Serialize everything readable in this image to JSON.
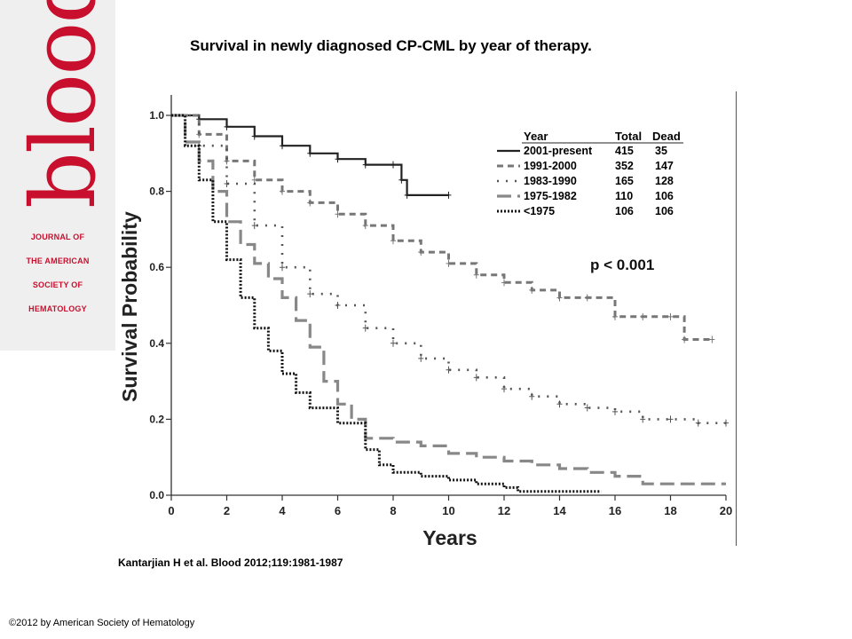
{
  "logo": {
    "word": "blood",
    "journal_lines": [
      "JOURNAL OF",
      "THE AMERICAN",
      "SOCIETY OF",
      "HEMATOLOGY"
    ]
  },
  "title": "Survival in newly diagnosed CP-CML by year of therapy.",
  "citation": "Kantarjian H et al. Blood 2012;119:1981-1987",
  "copyright": "©2012 by American Society of Hematology",
  "chart_data": {
    "type": "line",
    "xlabel": "Years",
    "ylabel": "Survival Probability",
    "xlim": [
      0,
      20
    ],
    "ylim": [
      0,
      1.0
    ],
    "xticks": [
      "0",
      "2",
      "4",
      "6",
      "8",
      "10",
      "12",
      "14",
      "16",
      "18",
      "20"
    ],
    "yticks": [
      "0.0",
      "0.2",
      "0.4",
      "0.6",
      "0.8",
      "1.0"
    ],
    "grid": false,
    "legend_placement": "top-right",
    "legend_headers": [
      "Year",
      "Total",
      "Dead"
    ],
    "annotation": "p < 0.001",
    "series": [
      {
        "name": "2001-present",
        "total": "415",
        "dead": "35",
        "style": "solid",
        "color": "#222222",
        "x": [
          0,
          1,
          2,
          3,
          4,
          5,
          6,
          7,
          8,
          8.3,
          8.5,
          10
        ],
        "y": [
          1.0,
          0.99,
          0.97,
          0.945,
          0.92,
          0.9,
          0.885,
          0.87,
          0.87,
          0.83,
          0.79,
          0.79
        ]
      },
      {
        "name": "1991-2000",
        "total": "352",
        "dead": "147",
        "style": "dash",
        "color": "#777777",
        "x": [
          0,
          1,
          2,
          3,
          4,
          5,
          6,
          7,
          8,
          9,
          10,
          11,
          12,
          13,
          14,
          15,
          16,
          17,
          18,
          18.5,
          19.5
        ],
        "y": [
          1.0,
          0.95,
          0.88,
          0.83,
          0.8,
          0.77,
          0.74,
          0.71,
          0.67,
          0.64,
          0.61,
          0.58,
          0.56,
          0.54,
          0.52,
          0.52,
          0.47,
          0.47,
          0.47,
          0.41,
          0.41
        ]
      },
      {
        "name": "1983-1990",
        "total": "165",
        "dead": "128",
        "style": "dot",
        "color": "#555555",
        "x": [
          0,
          1,
          2,
          3,
          4,
          5,
          6,
          7,
          8,
          9,
          10,
          11,
          12,
          13,
          14,
          15,
          16,
          17,
          18,
          19,
          20
        ],
        "y": [
          1.0,
          0.92,
          0.82,
          0.71,
          0.6,
          0.53,
          0.5,
          0.44,
          0.4,
          0.36,
          0.33,
          0.31,
          0.28,
          0.26,
          0.24,
          0.23,
          0.22,
          0.2,
          0.2,
          0.19,
          0.19
        ]
      },
      {
        "name": "1975-1982",
        "total": "110",
        "dead": "106",
        "style": "longdash",
        "color": "#888888",
        "x": [
          0,
          0.5,
          1,
          1.5,
          2,
          2.5,
          3,
          3.5,
          4,
          4.5,
          5,
          5.5,
          6,
          6.5,
          7,
          8,
          9,
          10,
          11,
          12,
          13,
          14,
          15,
          16,
          17,
          18,
          19,
          20
        ],
        "y": [
          1.0,
          0.93,
          0.88,
          0.8,
          0.72,
          0.66,
          0.61,
          0.57,
          0.52,
          0.46,
          0.39,
          0.3,
          0.24,
          0.2,
          0.15,
          0.14,
          0.13,
          0.11,
          0.1,
          0.09,
          0.08,
          0.07,
          0.06,
          0.05,
          0.03,
          0.03,
          0.03,
          0.03
        ]
      },
      {
        "name": "<1975",
        "total": "106",
        "dead": "106",
        "style": "densedot",
        "color": "#111111",
        "x": [
          0,
          0.5,
          1,
          1.5,
          2,
          2.5,
          3,
          3.5,
          4,
          4.5,
          5,
          6,
          7,
          7.5,
          8,
          9,
          10,
          11,
          12,
          12.5,
          14,
          15.5
        ],
        "y": [
          1.0,
          0.92,
          0.83,
          0.72,
          0.62,
          0.52,
          0.44,
          0.38,
          0.32,
          0.27,
          0.23,
          0.19,
          0.12,
          0.08,
          0.06,
          0.05,
          0.04,
          0.03,
          0.02,
          0.01,
          0.01,
          0.01
        ]
      }
    ]
  }
}
